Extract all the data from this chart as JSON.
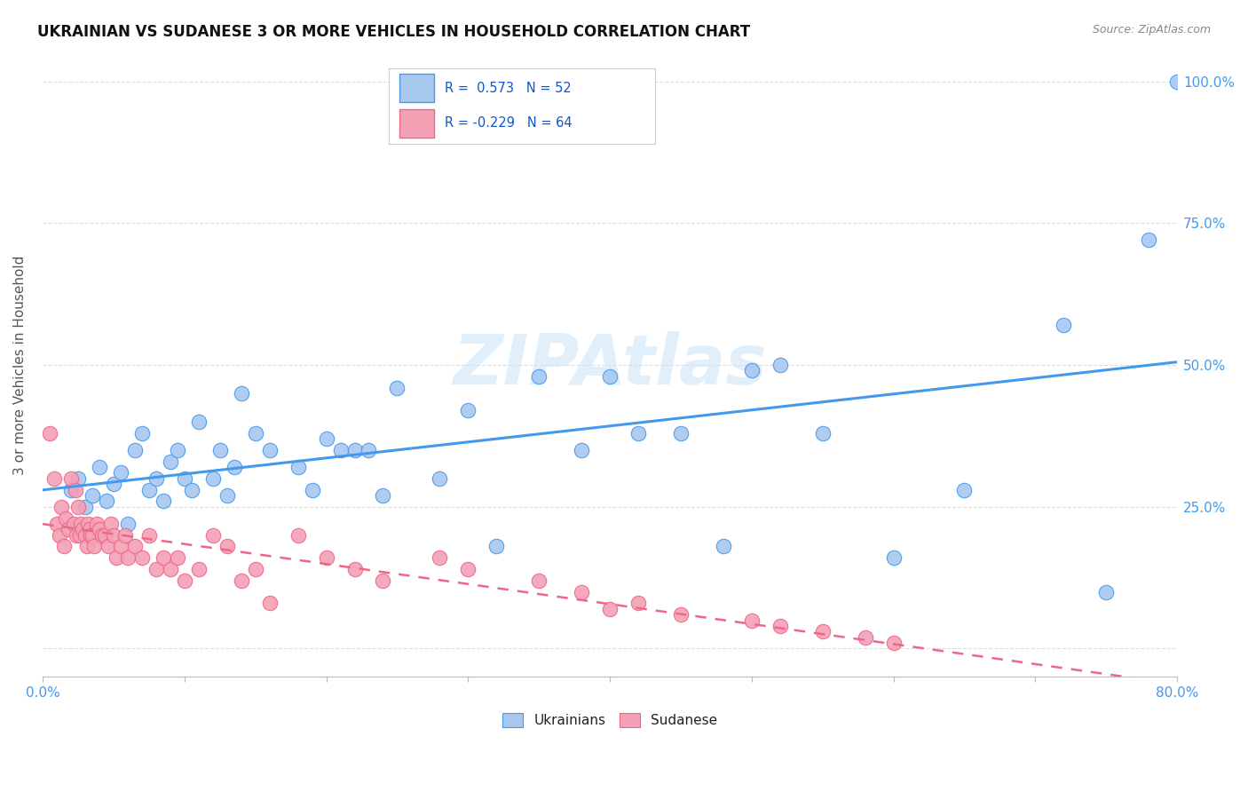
{
  "title": "UKRAINIAN VS SUDANESE 3 OR MORE VEHICLES IN HOUSEHOLD CORRELATION CHART",
  "source": "Source: ZipAtlas.com",
  "ylabel": "3 or more Vehicles in Household",
  "ytick_positions": [
    0.0,
    0.25,
    0.5,
    0.75,
    1.0
  ],
  "xlim": [
    0.0,
    0.8
  ],
  "ylim": [
    -0.05,
    1.05
  ],
  "blue_color": "#a8c8f0",
  "pink_color": "#f4a0b5",
  "blue_line_color": "#4499ee",
  "pink_line_color": "#ee6688",
  "background_color": "#ffffff",
  "grid_color": "#dddddd",
  "ukrainians_x": [
    0.02,
    0.025,
    0.03,
    0.035,
    0.04,
    0.045,
    0.05,
    0.055,
    0.06,
    0.065,
    0.07,
    0.075,
    0.08,
    0.085,
    0.09,
    0.095,
    0.1,
    0.105,
    0.11,
    0.12,
    0.125,
    0.13,
    0.135,
    0.14,
    0.15,
    0.16,
    0.18,
    0.19,
    0.2,
    0.21,
    0.22,
    0.23,
    0.24,
    0.25,
    0.28,
    0.3,
    0.32,
    0.35,
    0.38,
    0.4,
    0.42,
    0.45,
    0.48,
    0.5,
    0.52,
    0.55,
    0.6,
    0.65,
    0.72,
    0.75,
    0.78,
    0.8
  ],
  "ukrainians_y": [
    0.28,
    0.3,
    0.25,
    0.27,
    0.32,
    0.26,
    0.29,
    0.31,
    0.22,
    0.35,
    0.38,
    0.28,
    0.3,
    0.26,
    0.33,
    0.35,
    0.3,
    0.28,
    0.4,
    0.3,
    0.35,
    0.27,
    0.32,
    0.45,
    0.38,
    0.35,
    0.32,
    0.28,
    0.37,
    0.35,
    0.35,
    0.35,
    0.27,
    0.46,
    0.3,
    0.42,
    0.18,
    0.48,
    0.35,
    0.48,
    0.38,
    0.38,
    0.18,
    0.49,
    0.5,
    0.38,
    0.16,
    0.28,
    0.57,
    0.1,
    0.72,
    1.0
  ],
  "sudanese_x": [
    0.005,
    0.008,
    0.01,
    0.012,
    0.013,
    0.015,
    0.016,
    0.018,
    0.02,
    0.022,
    0.023,
    0.024,
    0.025,
    0.026,
    0.027,
    0.028,
    0.03,
    0.031,
    0.032,
    0.033,
    0.034,
    0.035,
    0.036,
    0.038,
    0.04,
    0.042,
    0.044,
    0.046,
    0.048,
    0.05,
    0.052,
    0.055,
    0.058,
    0.06,
    0.065,
    0.07,
    0.075,
    0.08,
    0.085,
    0.09,
    0.095,
    0.1,
    0.11,
    0.12,
    0.13,
    0.14,
    0.15,
    0.16,
    0.18,
    0.2,
    0.22,
    0.24,
    0.28,
    0.3,
    0.35,
    0.38,
    0.4,
    0.42,
    0.45,
    0.5,
    0.52,
    0.55,
    0.58,
    0.6
  ],
  "sudanese_y": [
    0.38,
    0.3,
    0.22,
    0.2,
    0.25,
    0.18,
    0.23,
    0.21,
    0.3,
    0.22,
    0.28,
    0.2,
    0.25,
    0.2,
    0.22,
    0.21,
    0.2,
    0.18,
    0.22,
    0.21,
    0.2,
    0.2,
    0.18,
    0.22,
    0.21,
    0.2,
    0.2,
    0.18,
    0.22,
    0.2,
    0.16,
    0.18,
    0.2,
    0.16,
    0.18,
    0.16,
    0.2,
    0.14,
    0.16,
    0.14,
    0.16,
    0.12,
    0.14,
    0.2,
    0.18,
    0.12,
    0.14,
    0.08,
    0.2,
    0.16,
    0.14,
    0.12,
    0.16,
    0.14,
    0.12,
    0.1,
    0.07,
    0.08,
    0.06,
    0.05,
    0.04,
    0.03,
    0.02,
    0.01
  ]
}
